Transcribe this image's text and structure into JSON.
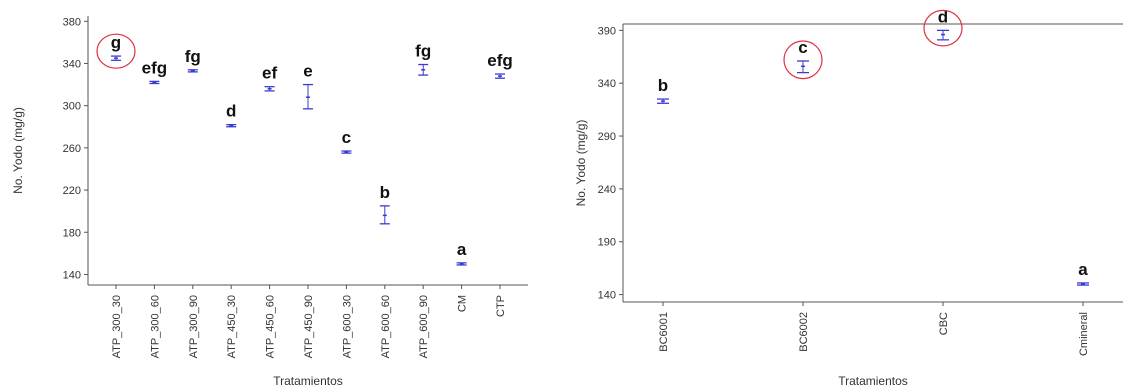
{
  "chart_data": [
    {
      "type": "scatter",
      "subtype": "means-with-error-bars",
      "xlabel": "Tratamientos",
      "ylabel": "No. Yodo (mg/g)",
      "ylim": [
        130,
        385
      ],
      "yticks": [
        140,
        180,
        220,
        260,
        300,
        340,
        380
      ],
      "grid": false,
      "series_color": "#3b3bd4",
      "highlight_color": "#e03040",
      "categories": [
        "ATP_300_30",
        "ATP_300_60",
        "ATP_300_90",
        "ATP_450_30",
        "ATP_450_60",
        "ATP_450_90",
        "ATP_600_30",
        "ATP_600_60",
        "ATP_600_90",
        "CM",
        "CTP"
      ],
      "values": [
        345,
        322,
        333,
        281,
        316,
        308,
        256,
        196,
        334,
        150,
        328
      ],
      "err_low": [
        343,
        321,
        332,
        280,
        314,
        297,
        255,
        188,
        329,
        149,
        326
      ],
      "err_high": [
        347,
        323,
        334,
        282,
        318,
        320,
        257,
        205,
        339,
        151,
        330
      ],
      "letters": [
        "g",
        "efg",
        "fg",
        "d",
        "ef",
        "e",
        "c",
        "b",
        "fg",
        "a",
        "efg"
      ],
      "highlighted": [
        0
      ]
    },
    {
      "type": "scatter",
      "subtype": "means-with-error-bars",
      "xlabel": "Tratamientos",
      "ylabel": "No. Yodo (mg/g)",
      "ylim": [
        133,
        396
      ],
      "yticks": [
        140,
        190,
        240,
        290,
        340,
        390
      ],
      "grid": false,
      "series_color": "#3b3bd4",
      "highlight_color": "#e03040",
      "categories": [
        "BC6001",
        "BC6002",
        "CBC",
        "Cmineral"
      ],
      "values": [
        323,
        356,
        386,
        150
      ],
      "err_low": [
        321,
        350,
        381,
        149
      ],
      "err_high": [
        325,
        361,
        390,
        151
      ],
      "letters": [
        "b",
        "c",
        "d",
        "a"
      ],
      "highlighted": [
        1,
        2
      ]
    }
  ]
}
